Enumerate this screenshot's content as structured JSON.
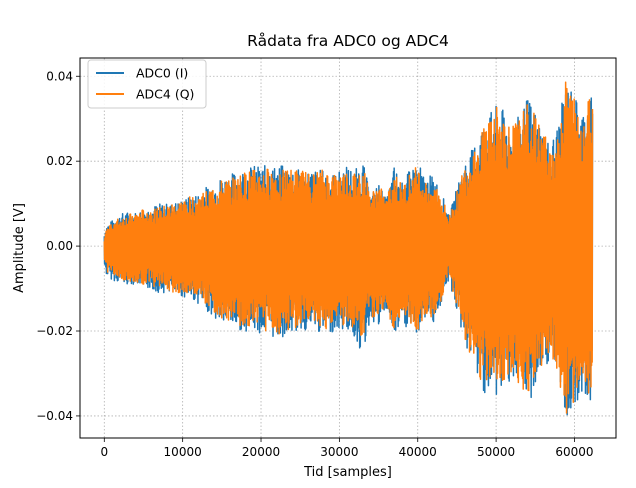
{
  "chart_data": {
    "type": "line",
    "title": "Rådata fra ADC0 og ADC4",
    "xlabel": "Tid [samples]",
    "ylabel": "Amplitude [V]",
    "xlim": [
      -3100,
      65300
    ],
    "ylim": [
      -0.0452,
      0.0443
    ],
    "x_ticks": [
      0,
      10000,
      20000,
      30000,
      40000,
      50000,
      60000
    ],
    "x_tick_labels": [
      "0",
      "10000",
      "20000",
      "30000",
      "40000",
      "50000",
      "60000"
    ],
    "y_ticks": [
      -0.04,
      -0.02,
      0.0,
      0.02,
      0.04
    ],
    "y_tick_labels": [
      "−0.04",
      "−0.02",
      "0.00",
      "0.02",
      "0.04"
    ],
    "grid": true,
    "legend_position": "upper-left",
    "series": [
      {
        "name": "ADC0 (I)",
        "color": "#1f77b4",
        "envelope": {
          "x": [
            0,
            300,
            1000,
            2500,
            4000,
            5500,
            7000,
            8500,
            10000,
            11500,
            13000,
            14500,
            16000,
            17500,
            19000,
            20500,
            22000,
            23500,
            25000,
            26500,
            28000,
            29500,
            31000,
            32000,
            33000,
            34000,
            35000,
            36000,
            37000,
            38000,
            39000,
            40000,
            41000,
            42000,
            43000,
            44000,
            45000,
            46000,
            47000,
            48000,
            49000,
            50000,
            51000,
            52000,
            53000,
            54000,
            55000,
            56000,
            57000,
            58000,
            59000,
            60000,
            61000,
            62000,
            62300
          ],
          "upper": [
            0.003,
            0.005,
            0.006,
            0.008,
            0.008,
            0.009,
            0.01,
            0.01,
            0.011,
            0.012,
            0.014,
            0.016,
            0.017,
            0.018,
            0.019,
            0.019,
            0.019,
            0.019,
            0.018,
            0.018,
            0.018,
            0.017,
            0.019,
            0.018,
            0.02,
            0.012,
            0.015,
            0.011,
            0.019,
            0.015,
            0.018,
            0.02,
            0.016,
            0.017,
            0.013,
            0.007,
            0.014,
            0.02,
            0.023,
            0.028,
            0.031,
            0.033,
            0.032,
            0.028,
            0.031,
            0.035,
            0.032,
            0.027,
            0.024,
            0.03,
            0.039,
            0.036,
            0.032,
            0.037,
            0.035
          ],
          "lower": [
            -0.005,
            -0.007,
            -0.008,
            -0.009,
            -0.009,
            -0.01,
            -0.011,
            -0.011,
            -0.012,
            -0.013,
            -0.015,
            -0.018,
            -0.019,
            -0.02,
            -0.02,
            -0.021,
            -0.022,
            -0.021,
            -0.02,
            -0.02,
            -0.021,
            -0.02,
            -0.02,
            -0.022,
            -0.026,
            -0.017,
            -0.02,
            -0.015,
            -0.022,
            -0.019,
            -0.02,
            -0.021,
            -0.017,
            -0.018,
            -0.014,
            -0.008,
            -0.016,
            -0.023,
            -0.028,
            -0.033,
            -0.036,
            -0.036,
            -0.034,
            -0.031,
            -0.034,
            -0.038,
            -0.034,
            -0.029,
            -0.027,
            -0.032,
            -0.041,
            -0.038,
            -0.034,
            -0.038,
            -0.036
          ]
        }
      },
      {
        "name": "ADC4 (Q)",
        "color": "#ff7f0e",
        "envelope": {
          "x": [
            0,
            300,
            1000,
            2500,
            4000,
            5500,
            7000,
            8500,
            10000,
            11500,
            13000,
            14500,
            16000,
            17500,
            19000,
            20500,
            22000,
            23500,
            25000,
            26500,
            28000,
            29500,
            31000,
            32000,
            33000,
            34000,
            35000,
            36000,
            37000,
            38000,
            39000,
            40000,
            41000,
            42000,
            43000,
            44000,
            45000,
            46000,
            47000,
            48000,
            49000,
            50000,
            51000,
            52000,
            53000,
            54000,
            55000,
            56000,
            57000,
            58000,
            59000,
            60000,
            61000,
            62000,
            62300
          ],
          "upper": [
            0.002,
            0.004,
            0.006,
            0.007,
            0.008,
            0.009,
            0.009,
            0.01,
            0.011,
            0.012,
            0.013,
            0.015,
            0.016,
            0.017,
            0.018,
            0.018,
            0.019,
            0.018,
            0.018,
            0.017,
            0.018,
            0.017,
            0.018,
            0.017,
            0.019,
            0.012,
            0.015,
            0.011,
            0.018,
            0.014,
            0.017,
            0.019,
            0.015,
            0.016,
            0.012,
            0.007,
            0.013,
            0.019,
            0.023,
            0.027,
            0.031,
            0.033,
            0.031,
            0.028,
            0.03,
            0.034,
            0.031,
            0.027,
            0.024,
            0.029,
            0.04,
            0.035,
            0.031,
            0.036,
            0.034
          ],
          "lower": [
            -0.004,
            -0.006,
            -0.007,
            -0.008,
            -0.009,
            -0.009,
            -0.01,
            -0.011,
            -0.011,
            -0.012,
            -0.014,
            -0.017,
            -0.018,
            -0.019,
            -0.019,
            -0.02,
            -0.021,
            -0.02,
            -0.019,
            -0.019,
            -0.02,
            -0.019,
            -0.019,
            -0.021,
            -0.025,
            -0.016,
            -0.019,
            -0.014,
            -0.021,
            -0.018,
            -0.019,
            -0.02,
            -0.016,
            -0.017,
            -0.013,
            -0.007,
            -0.015,
            -0.022,
            -0.027,
            -0.032,
            -0.035,
            -0.035,
            -0.033,
            -0.03,
            -0.033,
            -0.037,
            -0.033,
            -0.028,
            -0.026,
            -0.031,
            -0.042,
            -0.037,
            -0.033,
            -0.037,
            -0.035
          ]
        }
      }
    ]
  }
}
